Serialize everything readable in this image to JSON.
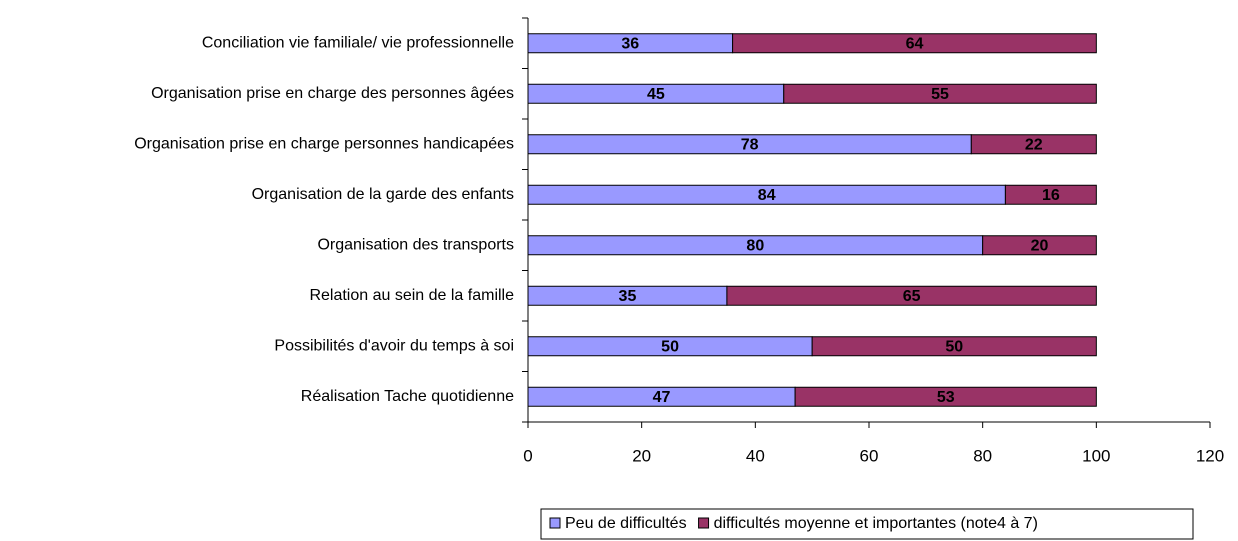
{
  "chart_data": {
    "type": "stacked_barh",
    "categories": [
      "Conciliation  vie familiale/ vie professionnelle",
      "Organisation  prise en charge des personnes âgées",
      "Organisation prise en charge  personnes handicapées",
      "Organisation de la garde des enfants",
      "Organisation des transports",
      "Relation au sein de la famille",
      "Possibilités d'avoir du temps à soi",
      "Réalisation Tache quotidienne"
    ],
    "series": [
      {
        "name": "Peu de difficultés",
        "color": "#9999ff",
        "values": [
          36,
          45,
          78,
          84,
          80,
          35,
          50,
          47
        ]
      },
      {
        "name": "difficultés moyenne et importantes (note4 à 7)",
        "color": "#993366",
        "values": [
          64,
          55,
          22,
          16,
          20,
          65,
          50,
          53
        ]
      }
    ],
    "xlim": [
      0,
      120
    ],
    "xticks": [
      0,
      20,
      40,
      60,
      80,
      100,
      120
    ],
    "legend": "bottom",
    "grid": false
  }
}
